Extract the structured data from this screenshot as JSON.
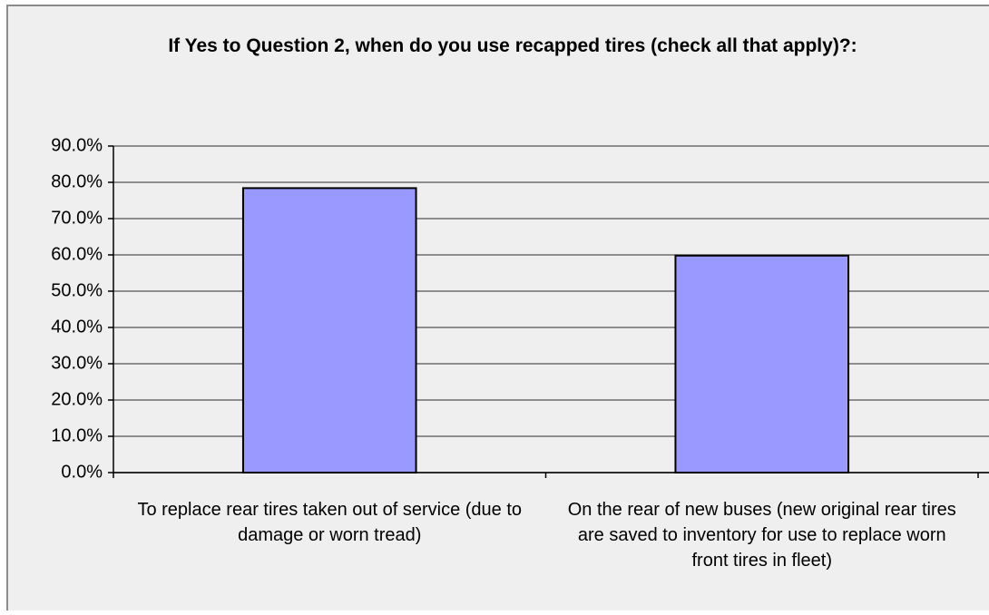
{
  "chart_data": {
    "type": "bar",
    "title": "If Yes to Question 2, when do you use recapped tires (check all that apply)?:",
    "categories": [
      "To replace rear tires taken out of service (due to damage or worn tread)",
      "On the rear of new buses (new original rear tires are saved to inventory for use to replace worn front tires in fleet)"
    ],
    "values": [
      78.4,
      59.8
    ],
    "color": "#9999ff",
    "ylim": [
      0,
      90
    ],
    "yticks": [
      {
        "value": 0,
        "label": "0.0%"
      },
      {
        "value": 10,
        "label": "10.0%"
      },
      {
        "value": 20,
        "label": "20.0%"
      },
      {
        "value": 30,
        "label": "30.0%"
      },
      {
        "value": 40,
        "label": "40.0%"
      },
      {
        "value": 50,
        "label": "50.0%"
      },
      {
        "value": 60,
        "label": "60.0%"
      },
      {
        "value": 70,
        "label": "70.0%"
      },
      {
        "value": 80,
        "label": "80.0%"
      },
      {
        "value": 90,
        "label": "90.0%"
      }
    ],
    "grid": true
  }
}
